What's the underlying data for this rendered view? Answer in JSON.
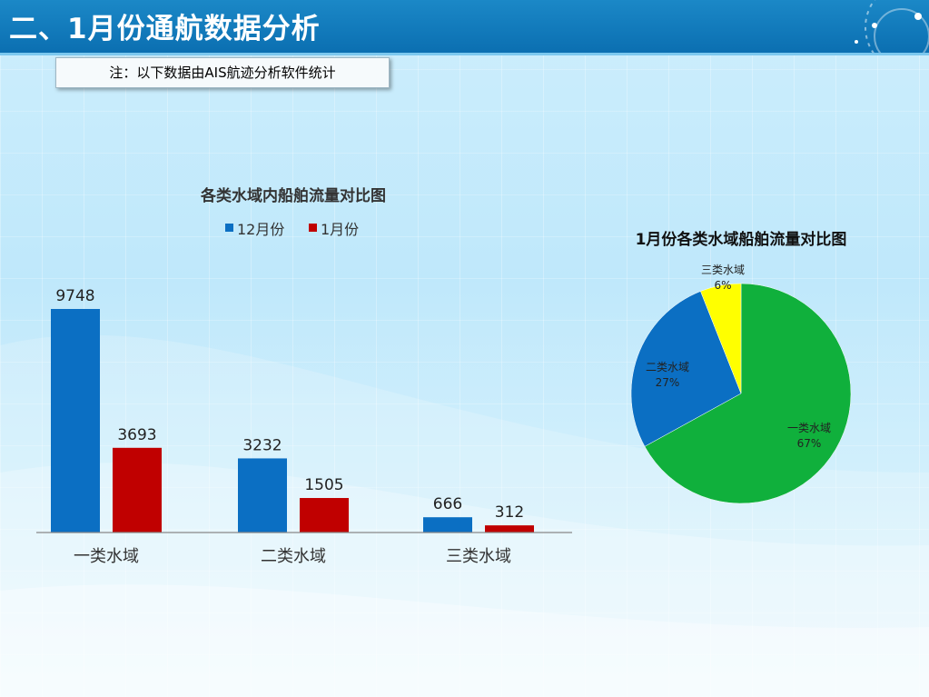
{
  "header": {
    "title": "二、1月份通航数据分析"
  },
  "note": {
    "text": "注：以下数据由AIS航迹分析软件统计"
  },
  "colors": {
    "blue": "#0b6fc3",
    "red": "#c00000",
    "green": "#10b03c",
    "yellow": "#ffff00"
  },
  "chart_data": [
    {
      "type": "bar",
      "title": "各类水域内船舶流量对比图",
      "categories": [
        "一类水域",
        "二类水域",
        "三类水域"
      ],
      "series": [
        {
          "name": "12月份",
          "values": [
            9748,
            3232,
            666
          ]
        },
        {
          "name": "1月份",
          "values": [
            3693,
            1505,
            312
          ]
        }
      ],
      "legend": "top",
      "grid": false
    },
    {
      "type": "pie",
      "title": "1月份各类水域船舶流量对比图",
      "labels": [
        "一类水域",
        "二类水域",
        "三类水域"
      ],
      "values": [
        67,
        27,
        6
      ],
      "value_labels": [
        "67%",
        "27%",
        "6%"
      ]
    }
  ]
}
